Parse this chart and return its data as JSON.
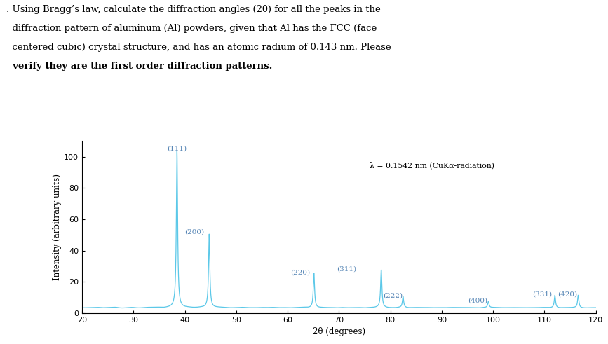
{
  "xlabel": "2θ (degrees)",
  "ylabel": "Intensity (arbitrary units)",
  "wavelength_label": "λ = 0.1542 nm (CuKα-radiation)",
  "peaks": {
    "labels": [
      "(111)",
      "(200)",
      "(220)",
      "(311)",
      "(222)",
      "(400)",
      "(331)",
      "(420)"
    ],
    "two_theta": [
      38.47,
      44.74,
      65.13,
      78.23,
      82.47,
      99.08,
      112.03,
      116.57
    ],
    "intensities": [
      100,
      47,
      22,
      24,
      7,
      4,
      8,
      8
    ]
  },
  "xlim": [
    20,
    120
  ],
  "ylim": [
    0,
    110
  ],
  "yticks": [
    0,
    20,
    40,
    60,
    80,
    100
  ],
  "xticks": [
    20,
    30,
    40,
    50,
    60,
    70,
    80,
    90,
    100,
    110,
    120
  ],
  "line_color": "#5bc8e8",
  "background_noise_amplitude": 5,
  "background_noise_seed": 42,
  "annotation_color": "#5585b5",
  "annotation_fontsize": 7.5,
  "axis_fontsize": 8.5,
  "tick_fontsize": 8,
  "figure_width": 8.67,
  "figure_height": 4.91,
  "text_lines": [
    ". Using Bragg’s law, calculate the diffraction angles (2θ) for all the peaks in the",
    "  diffraction pattern of aluminum (Al) powders, given that Al has the FCC (face",
    "  centered cubic) crystal structure, and has an atomic radium of 0.143 nm. Please",
    "  verify they are the first order diffraction patterns."
  ],
  "text_bold_line": 3
}
